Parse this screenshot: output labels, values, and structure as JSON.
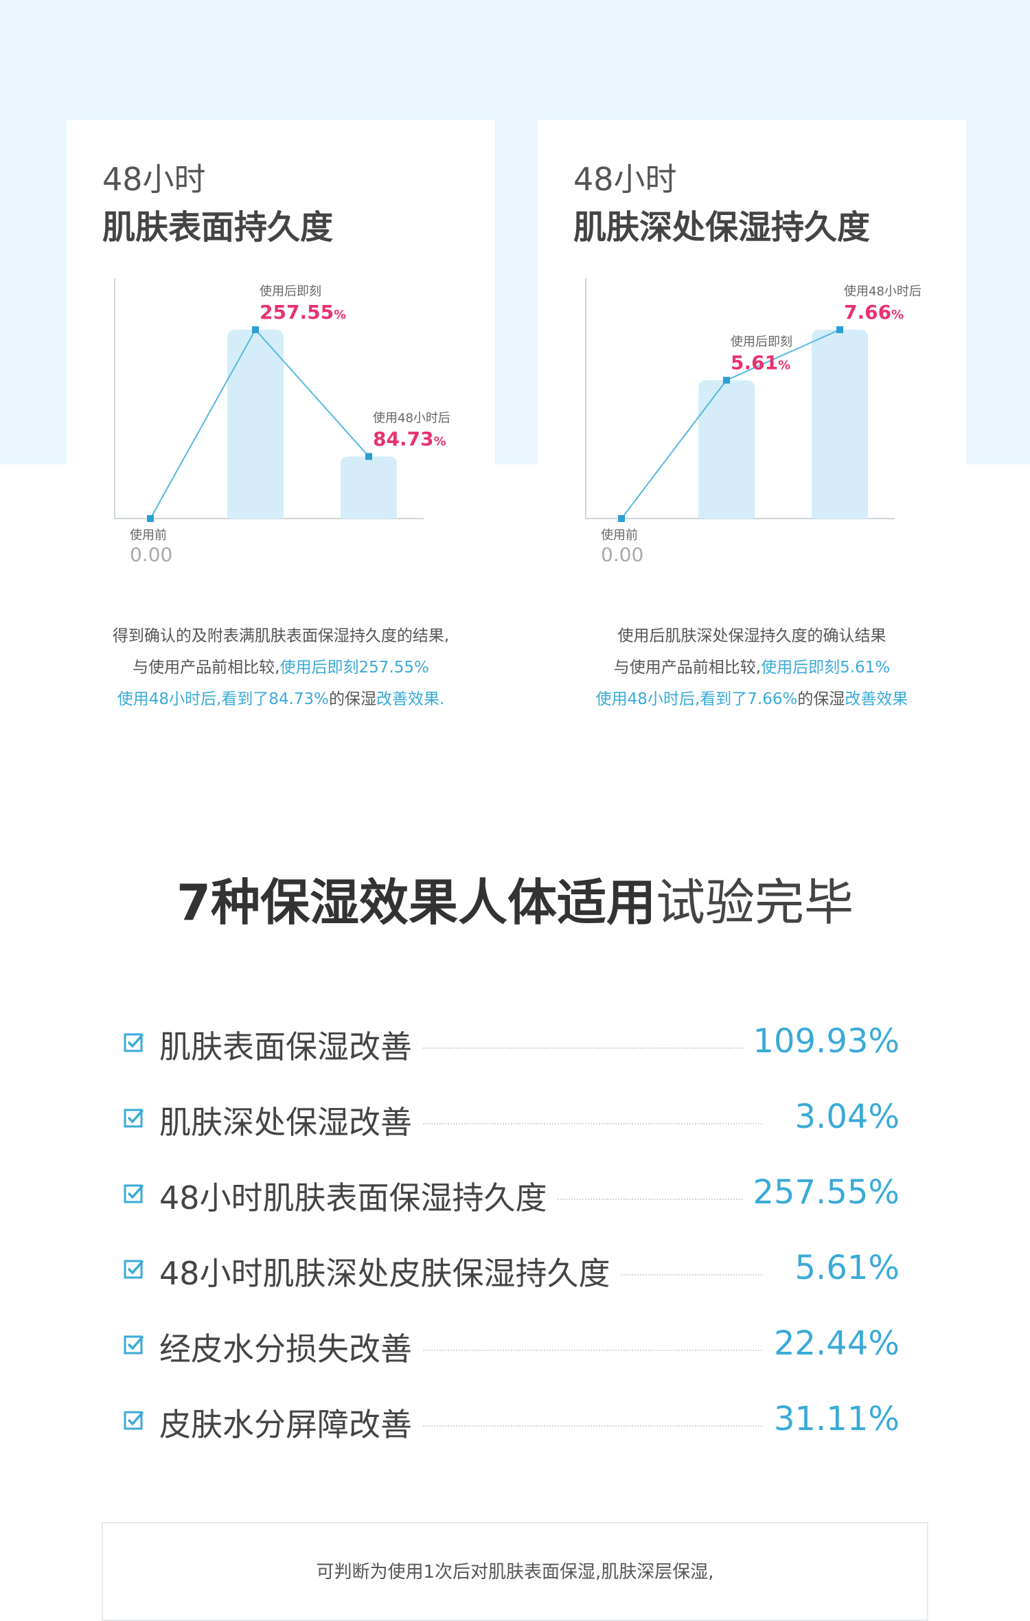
{
  "colors": {
    "accent": "#3aaad8",
    "highlight": "#e8336d",
    "band": "#eaf6fc",
    "bar": "#d4edf9"
  },
  "cards": [
    {
      "title_line1": "48小时",
      "title_line2": "肌肤表面持久度",
      "chart_data": {
        "type": "bar",
        "categories": [
          "使用前",
          "使用后即刻",
          "使用48小时后"
        ],
        "values": [
          0.0,
          257.55,
          84.73
        ],
        "value_labels": [
          "0.00",
          "257.55",
          "84.73"
        ],
        "unit": "%"
      },
      "desc_line1": "得到确认的及附表满肌肤表面保湿持久度的结果,",
      "desc_line2_a": "与使用产品前相比较,",
      "desc_line2_b": "使用后即刻257.55%",
      "desc_line3_a": "使用48小时后,看到了84.73%",
      "desc_line3_b": "的保湿",
      "desc_line3_c": "改善效果."
    },
    {
      "title_line1": "48小时",
      "title_line2": "肌肤深处保湿持久度",
      "chart_data": {
        "type": "bar",
        "categories": [
          "使用前",
          "使用后即刻",
          "使用48小时后"
        ],
        "values": [
          0.0,
          5.61,
          7.66
        ],
        "value_labels": [
          "0.00",
          "5.61",
          "7.66"
        ],
        "unit": "%"
      },
      "desc_line1": "使用后肌肤深处保湿持久度的确认结果",
      "desc_line2_a": "与使用产品前相比较,",
      "desc_line2_b": "使用后即刻5.61%",
      "desc_line3_a": "使用48小时后,看到了7.66%",
      "desc_line3_b": "的保湿",
      "desc_line3_c": "改善效果"
    }
  ],
  "section_title_bold": "7种保湿效果人体适用",
  "section_title_light": "试验完毕",
  "results": [
    {
      "label": "肌肤表面保湿改善",
      "value": "109.93%"
    },
    {
      "label": "肌肤深处保湿改善",
      "value": "3.04%"
    },
    {
      "label": "48小时肌肤表面保湿持久度",
      "value": "257.55%"
    },
    {
      "label": "48小时肌肤深处皮肤保湿持久度",
      "value": "5.61%"
    },
    {
      "label": "经皮水分损失改善",
      "value": "22.44%"
    },
    {
      "label": "皮肤水分屏障改善",
      "value": "31.11%"
    }
  ],
  "note": "可判断为使用1次后对肌肤表面保湿,肌肤深层保湿,"
}
